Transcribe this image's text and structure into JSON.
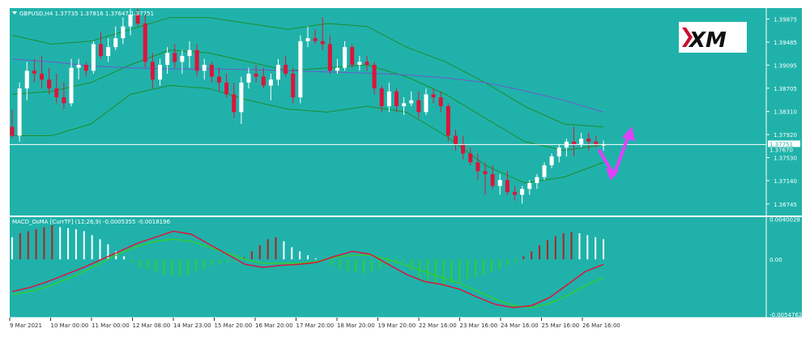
{
  "header": {
    "symbol_line": "GBPUSD,H4  1.37735 1.37816 1.37647 1.37751",
    "indicator_line": "MACD_OsMA [CurrTF] (12,26,9) -0.0005355 -0.0018196"
  },
  "logo": {
    "text": "XM",
    "color": "#c8102e"
  },
  "colors": {
    "background": "#20b2aa",
    "bull_candle": "#ffffff",
    "bear_candle": "#dc143c",
    "bollinger": "#1e8c2c",
    "moving_average": "#6a5acd",
    "macd_main": "#dc143c",
    "macd_signal": "#32cd32",
    "histogram_rising_up": "#ffffff",
    "histogram_falling_up": "#b22222",
    "histogram_down": "#32cd32",
    "arrow": "#e040fb"
  },
  "chart_data": [
    {
      "type": "candlestick",
      "symbol": "GBPUSD",
      "timeframe": "H4",
      "ohlc_now": {
        "open": 1.37735,
        "high": 1.37816,
        "low": 1.37647,
        "close": 1.37751
      },
      "price_axis_ticks": [
        "1.39875",
        "1.39485",
        "1.39095",
        "1.38705",
        "1.38310",
        "1.37920",
        "1.37530",
        "1.37140",
        "1.36745"
      ],
      "price_labels": [
        "1.37751",
        "1.37670"
      ],
      "current_price": 1.37751,
      "ylim": [
        1.3655,
        1.4006
      ],
      "time_labels": [
        "9 Mar 2021",
        "10 Mar 00:00",
        "11 Mar 00:00",
        "12 Mar 08:00",
        "14 Mar 23:00",
        "15 Mar 20:00",
        "16 Mar 20:00",
        "17 Mar 20:00",
        "18 Mar 20:00",
        "19 Mar 20:00",
        "22 Mar 16:00",
        "23 Mar 16:00",
        "24 Mar 16:00",
        "25 Mar 16:00",
        "26 Mar 16:00"
      ],
      "candles": [
        [
          1.3805,
          1.3835,
          1.3785,
          1.379
        ],
        [
          1.379,
          1.388,
          1.378,
          1.387
        ],
        [
          1.387,
          1.3915,
          1.385,
          1.39
        ],
        [
          1.39,
          1.392,
          1.388,
          1.3895
        ],
        [
          1.3895,
          1.3925,
          1.387,
          1.3885
        ],
        [
          1.3885,
          1.3905,
          1.386,
          1.387
        ],
        [
          1.387,
          1.3895,
          1.3845,
          1.3855
        ],
        [
          1.3855,
          1.388,
          1.3835,
          1.3845
        ],
        [
          1.3845,
          1.392,
          1.384,
          1.3905
        ],
        [
          1.3905,
          1.392,
          1.3885,
          1.391
        ],
        [
          1.391,
          1.3915,
          1.389,
          1.39
        ],
        [
          1.39,
          1.395,
          1.3895,
          1.3945
        ],
        [
          1.3945,
          1.3965,
          1.392,
          1.3925
        ],
        [
          1.3925,
          1.3955,
          1.3915,
          1.394
        ],
        [
          1.394,
          1.3975,
          1.3935,
          1.3955
        ],
        [
          1.3955,
          1.399,
          1.3945,
          1.3975
        ],
        [
          1.3975,
          1.4005,
          1.396,
          1.3995
        ],
        [
          1.3995,
          1.4005,
          1.3975,
          1.398
        ],
        [
          1.398,
          1.3995,
          1.3905,
          1.3915
        ],
        [
          1.3915,
          1.393,
          1.387,
          1.3885
        ],
        [
          1.3885,
          1.392,
          1.3875,
          1.391
        ],
        [
          1.391,
          1.394,
          1.3895,
          1.393
        ],
        [
          1.393,
          1.3945,
          1.3905,
          1.3915
        ],
        [
          1.3915,
          1.3935,
          1.3895,
          1.3925
        ],
        [
          1.3925,
          1.395,
          1.3905,
          1.3935
        ],
        [
          1.3935,
          1.3945,
          1.389,
          1.39
        ],
        [
          1.39,
          1.392,
          1.3885,
          1.391
        ],
        [
          1.391,
          1.3915,
          1.388,
          1.389
        ],
        [
          1.389,
          1.3905,
          1.3865,
          1.388
        ],
        [
          1.388,
          1.3895,
          1.3855,
          1.386
        ],
        [
          1.386,
          1.388,
          1.382,
          1.383
        ],
        [
          1.383,
          1.389,
          1.381,
          1.388
        ],
        [
          1.388,
          1.3905,
          1.387,
          1.3895
        ],
        [
          1.3895,
          1.391,
          1.388,
          1.389
        ],
        [
          1.389,
          1.3905,
          1.387,
          1.3875
        ],
        [
          1.3875,
          1.3895,
          1.385,
          1.3885
        ],
        [
          1.3885,
          1.392,
          1.3875,
          1.391
        ],
        [
          1.391,
          1.3925,
          1.389,
          1.3895
        ],
        [
          1.3895,
          1.3905,
          1.3845,
          1.3855
        ],
        [
          1.3855,
          1.396,
          1.3845,
          1.395
        ],
        [
          1.395,
          1.3975,
          1.394,
          1.3955
        ],
        [
          1.3955,
          1.397,
          1.3945,
          1.395
        ],
        [
          1.395,
          1.399,
          1.3935,
          1.3945
        ],
        [
          1.3945,
          1.396,
          1.3895,
          1.39
        ],
        [
          1.39,
          1.392,
          1.3895,
          1.3905
        ],
        [
          1.3905,
          1.395,
          1.39,
          1.394
        ],
        [
          1.394,
          1.3945,
          1.3905,
          1.391
        ],
        [
          1.391,
          1.3925,
          1.39,
          1.3915
        ],
        [
          1.3915,
          1.3925,
          1.39,
          1.391
        ],
        [
          1.391,
          1.3915,
          1.386,
          1.387
        ],
        [
          1.387,
          1.3875,
          1.383,
          1.384
        ],
        [
          1.384,
          1.388,
          1.383,
          1.3865
        ],
        [
          1.3865,
          1.387,
          1.383,
          1.384
        ],
        [
          1.384,
          1.3855,
          1.3825,
          1.3845
        ],
        [
          1.3845,
          1.3865,
          1.384,
          1.385
        ],
        [
          1.385,
          1.3865,
          1.382,
          1.383
        ],
        [
          1.383,
          1.387,
          1.3825,
          1.386
        ],
        [
          1.386,
          1.387,
          1.3845,
          1.3855
        ],
        [
          1.3855,
          1.3865,
          1.383,
          1.384
        ],
        [
          1.384,
          1.3845,
          1.378,
          1.379
        ],
        [
          1.379,
          1.38,
          1.3765,
          1.3775
        ],
        [
          1.3775,
          1.379,
          1.375,
          1.376
        ],
        [
          1.376,
          1.377,
          1.374,
          1.3745
        ],
        [
          1.3745,
          1.376,
          1.3715,
          1.373
        ],
        [
          1.373,
          1.3745,
          1.369,
          1.3725
        ],
        [
          1.3725,
          1.374,
          1.37,
          1.3705
        ],
        [
          1.3705,
          1.3725,
          1.369,
          1.3715
        ],
        [
          1.3715,
          1.373,
          1.369,
          1.3695
        ],
        [
          1.3695,
          1.3705,
          1.368,
          1.369
        ],
        [
          1.369,
          1.3705,
          1.3675,
          1.37
        ],
        [
          1.37,
          1.3715,
          1.369,
          1.371
        ],
        [
          1.371,
          1.3725,
          1.37,
          1.372
        ],
        [
          1.372,
          1.3745,
          1.3715,
          1.374
        ],
        [
          1.374,
          1.376,
          1.3735,
          1.3755
        ],
        [
          1.3755,
          1.3775,
          1.3745,
          1.377
        ],
        [
          1.377,
          1.3785,
          1.3755,
          1.378
        ],
        [
          1.378,
          1.3805,
          1.3755,
          1.3775
        ],
        [
          1.3775,
          1.3795,
          1.377,
          1.3785
        ],
        [
          1.3785,
          1.3795,
          1.3765,
          1.378
        ],
        [
          1.378,
          1.379,
          1.377,
          1.3775
        ],
        [
          1.37735,
          1.37816,
          1.37647,
          1.37751
        ]
      ],
      "bollinger_upper": [
        1.396,
        1.3945,
        1.395,
        1.397,
        1.399,
        1.399,
        1.398,
        1.397,
        1.398,
        1.3975,
        1.394,
        1.3915,
        1.388,
        1.384,
        1.381,
        1.3805
      ],
      "bollinger_middle": [
        1.386,
        1.3865,
        1.388,
        1.391,
        1.3935,
        1.393,
        1.3915,
        1.39,
        1.3905,
        1.391,
        1.389,
        1.386,
        1.382,
        1.378,
        1.3765,
        1.3775
      ],
      "bollinger_lower": [
        1.379,
        1.379,
        1.381,
        1.386,
        1.3875,
        1.387,
        1.385,
        1.3835,
        1.383,
        1.384,
        1.383,
        1.379,
        1.374,
        1.371,
        1.372,
        1.3745
      ],
      "moving_average": [
        1.392,
        1.3915,
        1.3908,
        1.3905,
        1.3903,
        1.3903,
        1.3902,
        1.39,
        1.3898,
        1.3896,
        1.3893,
        1.3888,
        1.388,
        1.3866,
        1.385,
        1.383
      ],
      "forecast_arrow": "down then up",
      "grid": false
    },
    {
      "type": "histogram+line",
      "name": "MACD_OsMA [CurrTF] (12,26,9)",
      "values_now": [
        -0.0005355,
        -0.0018196
      ],
      "axis_ticks": [
        "0.0040028",
        "0.00",
        "-0.0054762"
      ],
      "ylim": [
        -0.0058,
        0.0042
      ],
      "histogram": [
        0.0022,
        0.0026,
        0.0028,
        0.003,
        0.0032,
        0.0034,
        0.0032,
        0.0031,
        0.003,
        0.0028,
        0.0024,
        0.002,
        0.0015,
        0.0008,
        0.0003,
        -0.0003,
        -0.0008,
        -0.001,
        -0.0013,
        -0.0015,
        -0.0016,
        -0.0017,
        -0.0015,
        -0.0012,
        -0.001,
        -0.0006,
        -0.0004,
        -0.0003,
        -0.0002,
        0.0002,
        0.0008,
        0.0014,
        0.002,
        0.0022,
        0.0018,
        0.0012,
        0.0008,
        0.0004,
        0.0001,
        -0.0002,
        -0.0006,
        -0.001,
        -0.0012,
        -0.0013,
        -0.0014,
        -0.0012,
        -0.001,
        -0.0007,
        -0.0004,
        -0.0002,
        -0.001,
        -0.0018,
        -0.0022,
        -0.0024,
        -0.0025,
        -0.0024,
        -0.0022,
        -0.002,
        -0.0018,
        -0.0016,
        -0.0013,
        -0.001,
        -0.0006,
        -0.0003,
        0.0003,
        0.0008,
        0.0014,
        0.0019,
        0.0023,
        0.0026,
        0.0027,
        0.0026,
        0.0024,
        0.0022,
        0.002
      ],
      "main_line": [
        -0.0032,
        -0.0028,
        -0.0022,
        -0.0015,
        -0.0008,
        0.0,
        0.0008,
        0.0016,
        0.0022,
        0.0028,
        0.0025,
        0.0015,
        0.0005,
        -0.0005,
        -0.0008,
        -0.0006,
        -0.0005,
        -0.0003,
        0.0003,
        0.0008,
        0.0005,
        -0.0005,
        -0.0015,
        -0.0022,
        -0.0025,
        -0.003,
        -0.0038,
        -0.0045,
        -0.0048,
        -0.0046,
        -0.0038,
        -0.0025,
        -0.0012,
        -0.0005
      ],
      "signal_line": [
        -0.0035,
        -0.0032,
        -0.0027,
        -0.002,
        -0.0012,
        -0.0003,
        0.0006,
        0.0013,
        0.0018,
        0.002,
        0.0018,
        0.0012,
        0.0006,
        0.0,
        -0.0004,
        -0.0004,
        -0.0004,
        -0.0002,
        0.0002,
        0.0004,
        0.0004,
        0.0,
        -0.0006,
        -0.0012,
        -0.0018,
        -0.0024,
        -0.0032,
        -0.004,
        -0.0046,
        -0.0048,
        -0.0044,
        -0.0036,
        -0.0026,
        -0.0018
      ],
      "grid": false
    }
  ]
}
